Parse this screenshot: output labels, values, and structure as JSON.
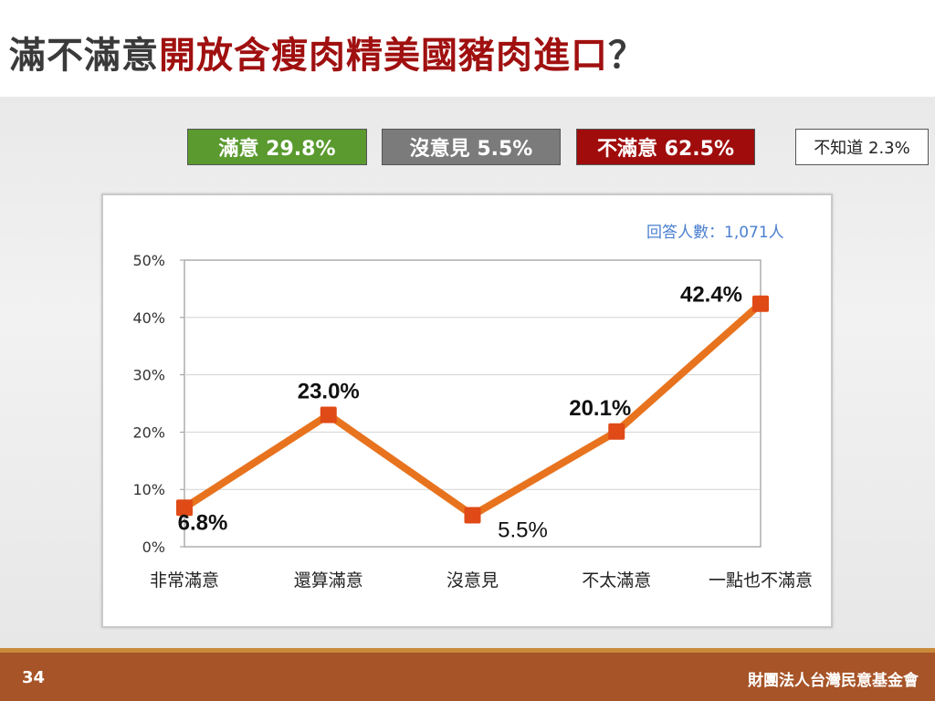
{
  "title": {
    "prefix": "滿不滿意",
    "highlight": "開放含瘦肉精美國豬肉進口",
    "suffix": "？"
  },
  "summary": {
    "satisfied": "滿意 29.8%",
    "no_opinion": "沒意見 5.5%",
    "dissatisfied": "不滿意 62.5%",
    "dont_know": "不知道 2.3%"
  },
  "respondents": "回答人數：1,071人",
  "colors": {
    "satisfied": "#5a9a2e",
    "no_opinion": "#7b7b7b",
    "dissatisfied": "#a00c0c",
    "line": "#e8731e",
    "marker": "#e04a16",
    "title_highlight": "#a01010",
    "footer": "#a65428"
  },
  "chart_data": {
    "type": "line",
    "categories": [
      "非常滿意",
      "還算滿意",
      "沒意見",
      "不太滿意",
      "一點也不滿意"
    ],
    "values": [
      6.8,
      23.0,
      5.5,
      20.1,
      42.4
    ],
    "data_labels": [
      "6.8%",
      "23.0%",
      "5.5%",
      "20.1%",
      "42.4%"
    ],
    "ylim": [
      0,
      50
    ],
    "yticks": [
      0,
      10,
      20,
      30,
      40,
      50
    ],
    "ytick_labels": [
      "0%",
      "10%",
      "20%",
      "30%",
      "40%",
      "50%"
    ],
    "grid": true,
    "xlabel": "",
    "ylabel": ""
  },
  "footer": {
    "page": "34",
    "org": "財團法人台灣民意基金會"
  }
}
